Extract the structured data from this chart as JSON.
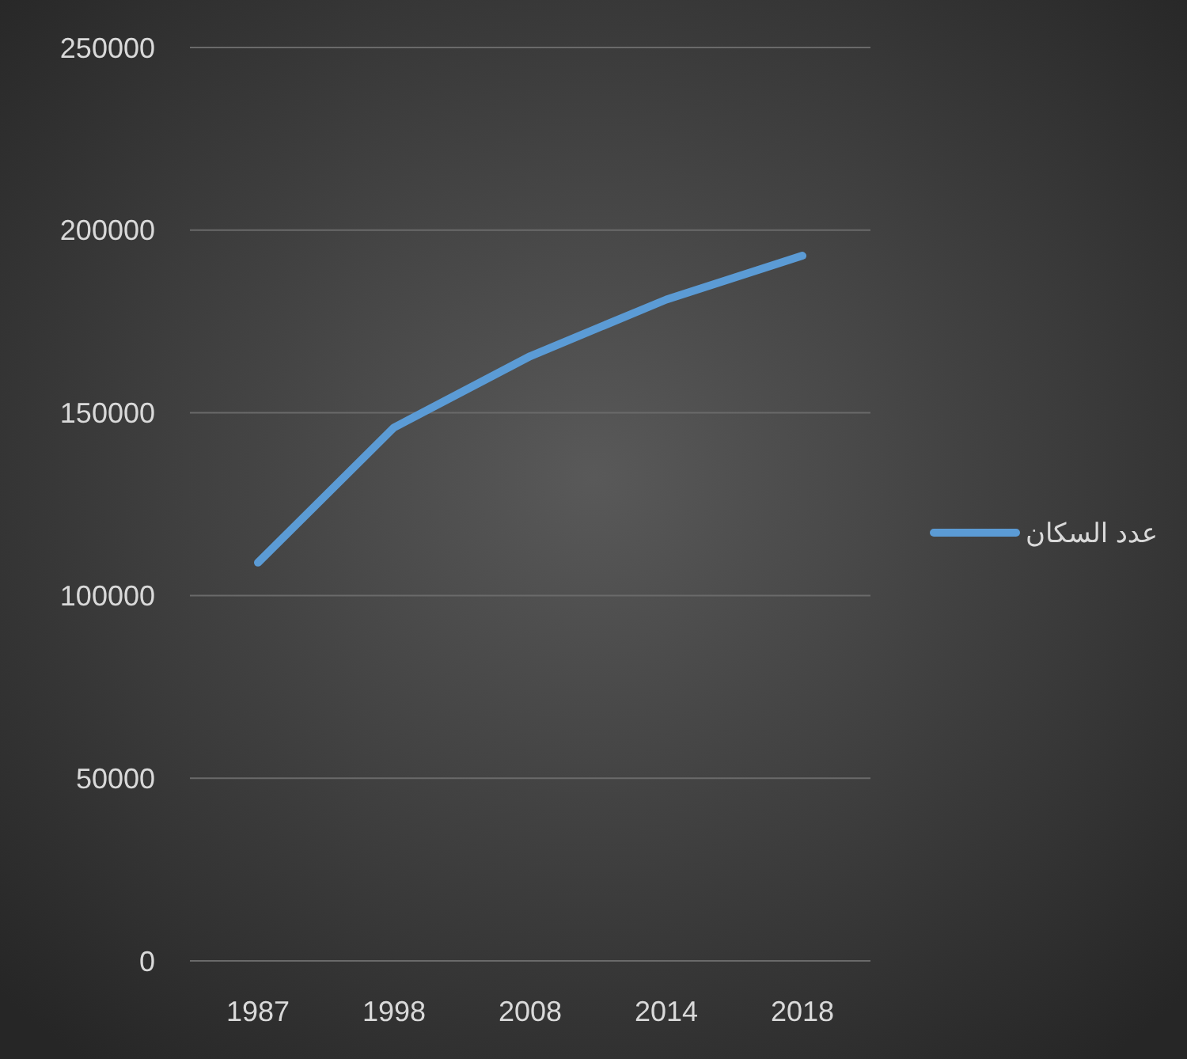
{
  "chart_data": {
    "type": "line",
    "categories": [
      "1987",
      "1998",
      "2008",
      "2014",
      "2018"
    ],
    "series": [
      {
        "name": "عدد السكان",
        "color": "#5b9bd5",
        "values": [
          109000,
          146000,
          165500,
          181000,
          193000
        ]
      }
    ],
    "ylim": [
      0,
      250000
    ],
    "yticks": [
      0,
      50000,
      100000,
      150000,
      200000,
      250000
    ],
    "grid": "y",
    "legend": "right",
    "marker": "none",
    "line_style": "solid"
  }
}
